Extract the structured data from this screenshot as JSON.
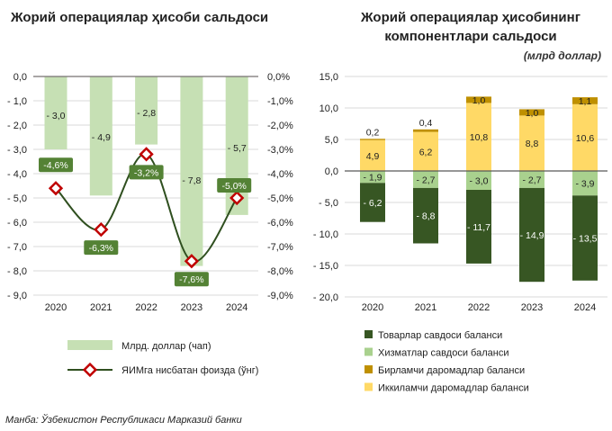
{
  "colors": {
    "bar_left": "#c6e0b4",
    "line": "#2f4f1f",
    "marker_fill": "#ffffff",
    "marker_stroke": "#c00000",
    "label_box": "#548235",
    "goods": "#375623",
    "services": "#a9d18e",
    "primary": "#bf9000",
    "secondary": "#ffd966"
  },
  "source": "Манба: Ўзбекистон Республикаси Марказий банки",
  "chart_data": [
    {
      "type": "bar+line",
      "title": "Жорий операциялар ҳисоби сальдоси",
      "categories": [
        "2020",
        "2021",
        "2022",
        "2023",
        "2024"
      ],
      "series": [
        {
          "name": "Млрд. доллар (чап)",
          "type": "bar",
          "axis": "left",
          "values": [
            -3.0,
            -4.9,
            -2.8,
            -7.8,
            -5.7
          ],
          "labels": [
            "- 3,0",
            "- 4,9",
            "- 2,8",
            "- 7,8",
            "- 5,7"
          ]
        },
        {
          "name": "ЯИМга нисбатан фоизда (ўнг)",
          "type": "line",
          "axis": "right",
          "values": [
            -4.6,
            -6.3,
            -3.2,
            -7.6,
            -5.0
          ],
          "labels": [
            "-4,6%",
            "-6,3%",
            "-3,2%",
            "-7,6%",
            "-5,0%"
          ]
        }
      ],
      "ylim_left": [
        -9,
        0
      ],
      "yticks_left": [
        "0,0",
        "- 1,0",
        "- 2,0",
        "- 3,0",
        "- 4,0",
        "- 5,0",
        "- 6,0",
        "- 7,0",
        "- 8,0",
        "- 9,0"
      ],
      "ylim_right": [
        -9,
        0
      ],
      "yticks_right": [
        "0,0%",
        "-1,0%",
        "-2,0%",
        "-3,0%",
        "-4,0%",
        "-5,0%",
        "-6,0%",
        "-7,0%",
        "-8,0%",
        "-9,0%"
      ],
      "grid": true,
      "legend": "bottom"
    },
    {
      "type": "stacked-bar",
      "title": [
        "Жорий операциялар ҳисобининг",
        "компонентлари сальдоси"
      ],
      "unit": "(млрд доллар)",
      "categories": [
        "2020",
        "2021",
        "2022",
        "2023",
        "2024"
      ],
      "series": [
        {
          "name": "Товарлар савдоси баланси",
          "values": [
            -6.2,
            -8.8,
            -11.7,
            -14.9,
            -13.5
          ],
          "labels": [
            "- 6,2",
            "- 8,8",
            "- 11,7",
            "- 14,9",
            "- 13,5"
          ]
        },
        {
          "name": "Хизматлар савдоси баланси",
          "values": [
            -1.9,
            -2.7,
            -3.0,
            -2.7,
            -3.9
          ],
          "labels": [
            "- 1,9",
            "- 2,7",
            "- 3,0",
            "- 2,7",
            "- 3,9"
          ]
        },
        {
          "name": "Бирламчи даромадлар баланси",
          "values": [
            0.2,
            0.4,
            1.0,
            1.0,
            1.1
          ],
          "labels": [
            "0,2",
            "0,4",
            "1,0",
            "1,0",
            "1,1"
          ]
        },
        {
          "name": "Иккиламчи даромадлар баланси",
          "values": [
            4.9,
            6.2,
            10.8,
            8.8,
            10.6
          ],
          "labels": [
            "4,9",
            "6,2",
            "10,8",
            "8,8",
            "10,6"
          ]
        }
      ],
      "ylim": [
        -20,
        15
      ],
      "yticks": [
        "15,0",
        "10,0",
        "5,0",
        "0,0",
        "- 5,0",
        "- 10,0",
        "- 15,0",
        "- 20,0"
      ],
      "grid": true,
      "legend": "bottom"
    }
  ]
}
